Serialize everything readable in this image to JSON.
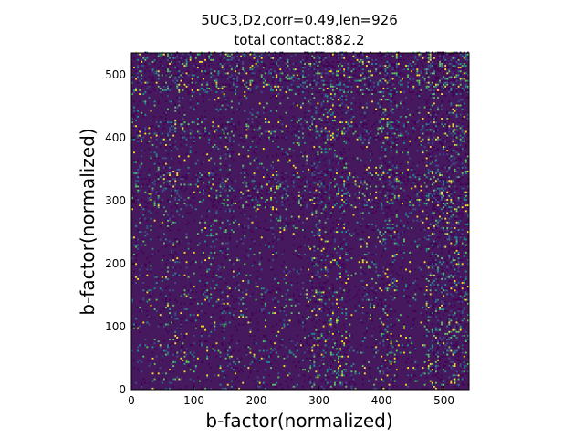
{
  "chart_data": {
    "type": "heatmap",
    "title_lines": [
      "5UC3,D2,corr=0.49,len=926",
      "total contact:882.2"
    ],
    "xlabel": "b-factor(normalized)",
    "ylabel": "b-factor(normalized)",
    "xlim": [
      0,
      540
    ],
    "ylim": [
      0,
      535
    ],
    "x_ticks": [
      0,
      100,
      200,
      300,
      400,
      500
    ],
    "y_ticks": [
      0,
      100,
      200,
      300,
      400,
      500
    ],
    "colormap": "viridis",
    "background_color": "#46195f",
    "colors": {
      "low": "#440154",
      "mid_low": "#3b528b",
      "mid": "#21918c",
      "mid_high": "#5ec962",
      "high": "#fde725"
    },
    "grid": false,
    "legend": "none",
    "description_of_values": "contact map; dense bright bands around x≈290-340, x≈400-420, x≈480-535 and y≈400-420, y≈480-535; sparse elsewhere"
  }
}
